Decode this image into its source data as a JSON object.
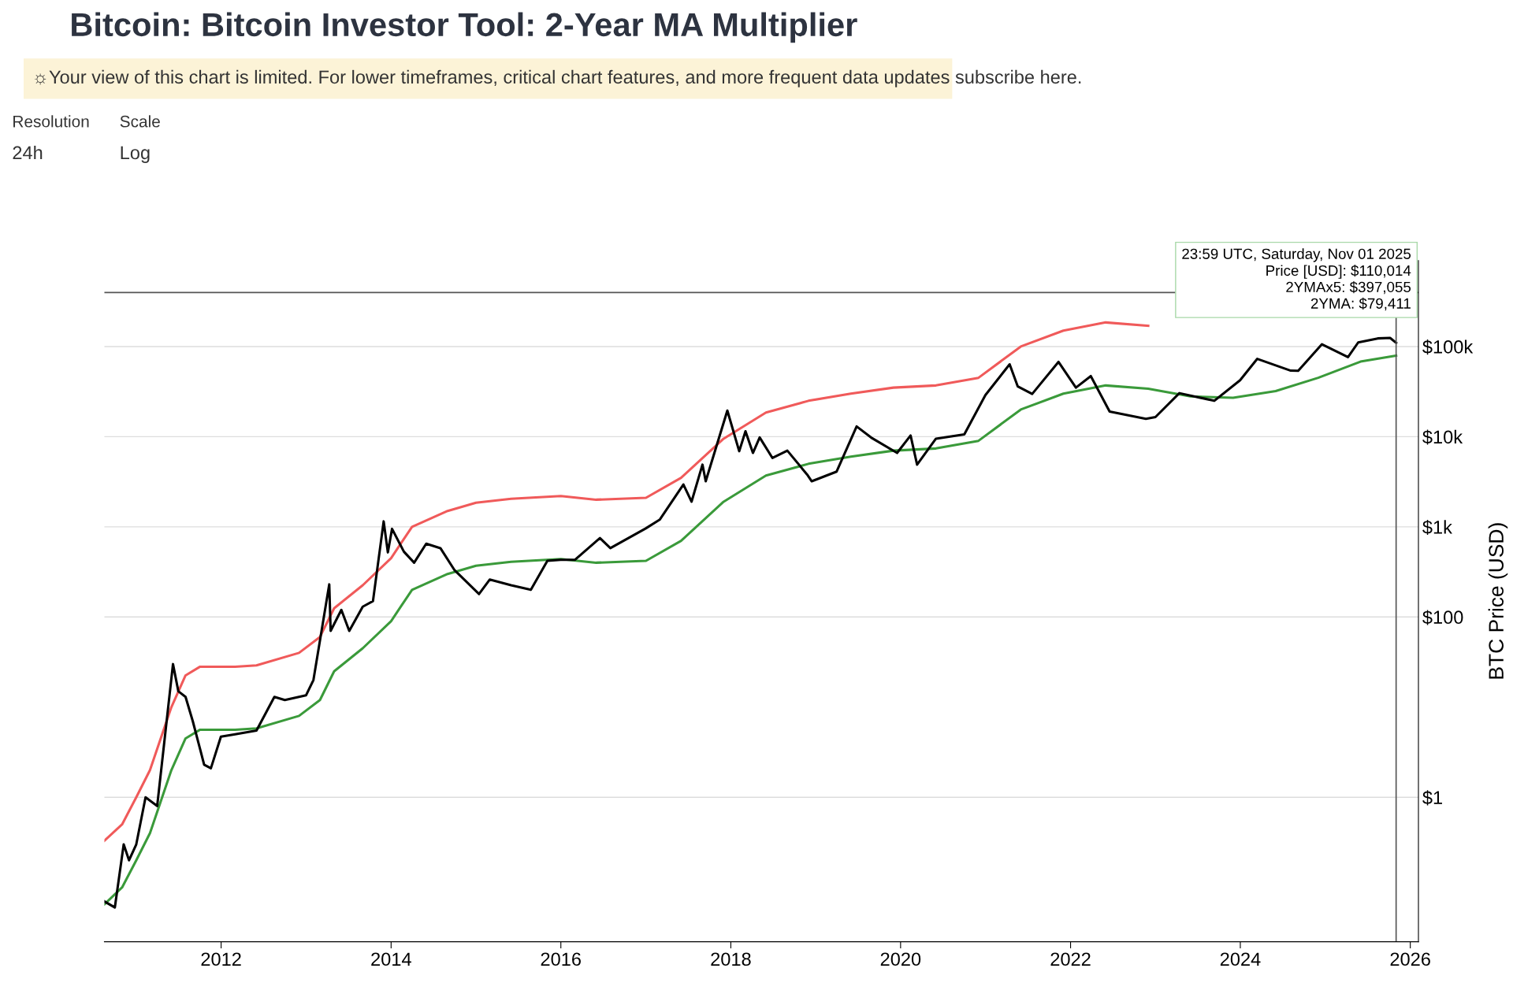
{
  "chart_data": {
    "type": "line",
    "title": "Bitcoin: Bitcoin Investor Tool: 2-Year MA Multiplier",
    "ylabel": "BTC Price (USD)",
    "log": "y",
    "grid": "y",
    "legend": false,
    "line_style": "solid",
    "marker": "none",
    "annotations": [
      "☼Your view of this chart is limited. For lower timeframes, critical chart features, and more frequent data updates subscribe here.",
      "Resolution",
      "24h",
      "Scale",
      "Log",
      "23:59 UTC, Saturday, Nov 01 2025",
      "Price [USD]: $110,014",
      "2YMAx5: $397,055",
      "2YMA: $79,411"
    ],
    "xlim": [
      "2010-08-17",
      "2026-02-05"
    ],
    "xticks": [
      "2012",
      "2014",
      "2016",
      "2018",
      "2020",
      "2022",
      "2024",
      "2026"
    ],
    "ylim": [
      0.025,
      900000
    ],
    "yticks": [
      {
        "value": 1,
        "label": "$1"
      },
      {
        "value": 100,
        "label": "$100"
      },
      {
        "value": 1000,
        "label": "$1k"
      },
      {
        "value": 10000,
        "label": "$10k"
      },
      {
        "value": 100000,
        "label": "$100k"
      }
    ],
    "ref_lines": [
      {
        "axis": "x",
        "value": "2025-11-01",
        "label": null,
        "color": "#555555"
      },
      {
        "axis": "y",
        "value": 397055,
        "label": null,
        "color": "#555555"
      }
    ],
    "series": [
      {
        "color": "#f05a5a",
        "x": [
          "2010-08-17",
          "2010-11-01",
          "2011-01-01",
          "2011-03-01",
          "2011-06-01",
          "2011-08-01",
          "2011-10-01",
          "2012-03-01",
          "2012-06-01",
          "2012-12-01",
          "2013-03-01",
          "2013-05-01",
          "2013-09-01",
          "2014-01-01",
          "2014-04-01",
          "2014-09-01",
          "2015-01-01",
          "2015-06-01",
          "2016-01-01",
          "2016-06-01",
          "2017-01-01",
          "2017-06-01",
          "2017-12-01",
          "2018-06-01",
          "2018-12-01",
          "2019-06-01",
          "2019-12-01",
          "2020-06-01",
          "2020-12-01",
          "2021-06-01",
          "2021-12-01",
          "2022-06-01",
          "2022-12-01"
        ],
        "values": [
          0.33,
          0.5,
          1,
          2,
          10,
          22.5,
          28,
          28,
          29,
          40,
          60,
          125,
          225,
          450,
          1000,
          1500,
          1850,
          2050,
          2200,
          2000,
          2100,
          3500,
          9500,
          18500,
          25000,
          30000,
          35000,
          37000,
          45000,
          100000,
          150000,
          185000,
          170000
        ]
      },
      {
        "color": "#3a9a3a",
        "x": [
          "2010-08-17",
          "2010-11-01",
          "2011-01-01",
          "2011-03-01",
          "2011-06-01",
          "2011-08-01",
          "2011-10-01",
          "2012-03-01",
          "2012-06-01",
          "2012-12-01",
          "2013-03-01",
          "2013-05-01",
          "2013-09-01",
          "2014-01-01",
          "2014-04-01",
          "2014-09-01",
          "2015-01-01",
          "2015-06-01",
          "2016-01-01",
          "2016-06-01",
          "2017-01-01",
          "2017-06-01",
          "2017-12-01",
          "2018-06-01",
          "2018-12-01",
          "2019-06-01",
          "2019-12-01",
          "2020-06-01",
          "2020-12-01",
          "2021-06-01",
          "2021-12-01",
          "2022-06-01",
          "2022-12-01",
          "2023-06-01",
          "2023-12-01",
          "2024-06-01",
          "2024-12-01",
          "2025-06-01",
          "2025-11-01"
        ],
        "values": [
          0.065,
          0.1,
          0.2,
          0.4,
          2,
          4.5,
          5.6,
          5.6,
          5.8,
          8,
          12,
          25,
          45,
          90,
          200,
          300,
          370,
          410,
          440,
          400,
          420,
          700,
          1900,
          3700,
          5000,
          6000,
          7000,
          7400,
          9000,
          20000,
          30000,
          37000,
          34000,
          28000,
          27000,
          32000,
          45000,
          68000,
          79411
        ]
      },
      {
        "color": "#000000",
        "x": [
          "2010-08-17",
          "2010-10-01",
          "2010-11-08",
          "2010-12-01",
          "2011-01-01",
          "2011-02-10",
          "2011-04-01",
          "2011-06-08",
          "2011-07-01",
          "2011-08-01",
          "2011-09-01",
          "2011-10-20",
          "2011-11-18",
          "2011-12-31",
          "2012-03-01",
          "2012-06-01",
          "2012-08-17",
          "2012-10-01",
          "2012-12-31",
          "2013-02-01",
          "2013-04-10",
          "2013-04-16",
          "2013-06-01",
          "2013-07-05",
          "2013-09-01",
          "2013-10-15",
          "2013-11-30",
          "2013-12-18",
          "2014-01-05",
          "2014-02-25",
          "2014-04-10",
          "2014-06-01",
          "2014-08-01",
          "2014-10-01",
          "2015-01-14",
          "2015-03-01",
          "2015-06-01",
          "2015-08-25",
          "2015-11-04",
          "2015-12-31",
          "2016-03-01",
          "2016-06-17",
          "2016-08-01",
          "2016-12-31",
          "2017-03-01",
          "2017-06-11",
          "2017-07-16",
          "2017-09-01",
          "2017-09-15",
          "2017-12-17",
          "2018-02-06",
          "2018-03-05",
          "2018-04-06",
          "2018-05-05",
          "2018-06-29",
          "2018-09-01",
          "2018-11-25",
          "2018-12-15",
          "2019-04-01",
          "2019-06-26",
          "2019-09-01",
          "2019-12-17",
          "2020-02-13",
          "2020-03-12",
          "2020-06-01",
          "2020-10-01",
          "2020-12-31",
          "2021-04-14",
          "2021-05-19",
          "2021-07-20",
          "2021-11-10",
          "2022-01-24",
          "2022-03-29",
          "2022-06-18",
          "2022-11-21",
          "2023-01-01",
          "2023-04-14",
          "2023-09-11",
          "2023-12-31",
          "2024-03-14",
          "2024-08-05",
          "2024-09-06",
          "2024-12-17",
          "2025-04-08",
          "2025-05-22",
          "2025-08-14",
          "2025-10-06",
          "2025-11-01"
        ],
        "values": [
          0.07,
          0.06,
          0.3,
          0.2,
          0.3,
          1,
          0.8,
          30,
          15,
          13,
          7,
          2.3,
          2.1,
          4.7,
          5,
          5.5,
          13,
          12,
          13.5,
          20,
          230,
          70,
          120,
          70,
          130,
          150,
          1150,
          520,
          950,
          530,
          400,
          650,
          580,
          330,
          180,
          260,
          225,
          200,
          420,
          430,
          430,
          750,
          580,
          960,
          1200,
          2950,
          1900,
          4900,
          3200,
          19500,
          6900,
          11500,
          6600,
          9800,
          5800,
          7000,
          3800,
          3200,
          4100,
          13000,
          9600,
          6600,
          10300,
          4900,
          9500,
          10600,
          29000,
          63500,
          36000,
          29800,
          67500,
          35000,
          47000,
          19000,
          15800,
          16500,
          30400,
          25000,
          42300,
          73000,
          54000,
          53900,
          106000,
          76300,
          111000,
          123000,
          124700,
          110014
        ]
      }
    ]
  }
}
